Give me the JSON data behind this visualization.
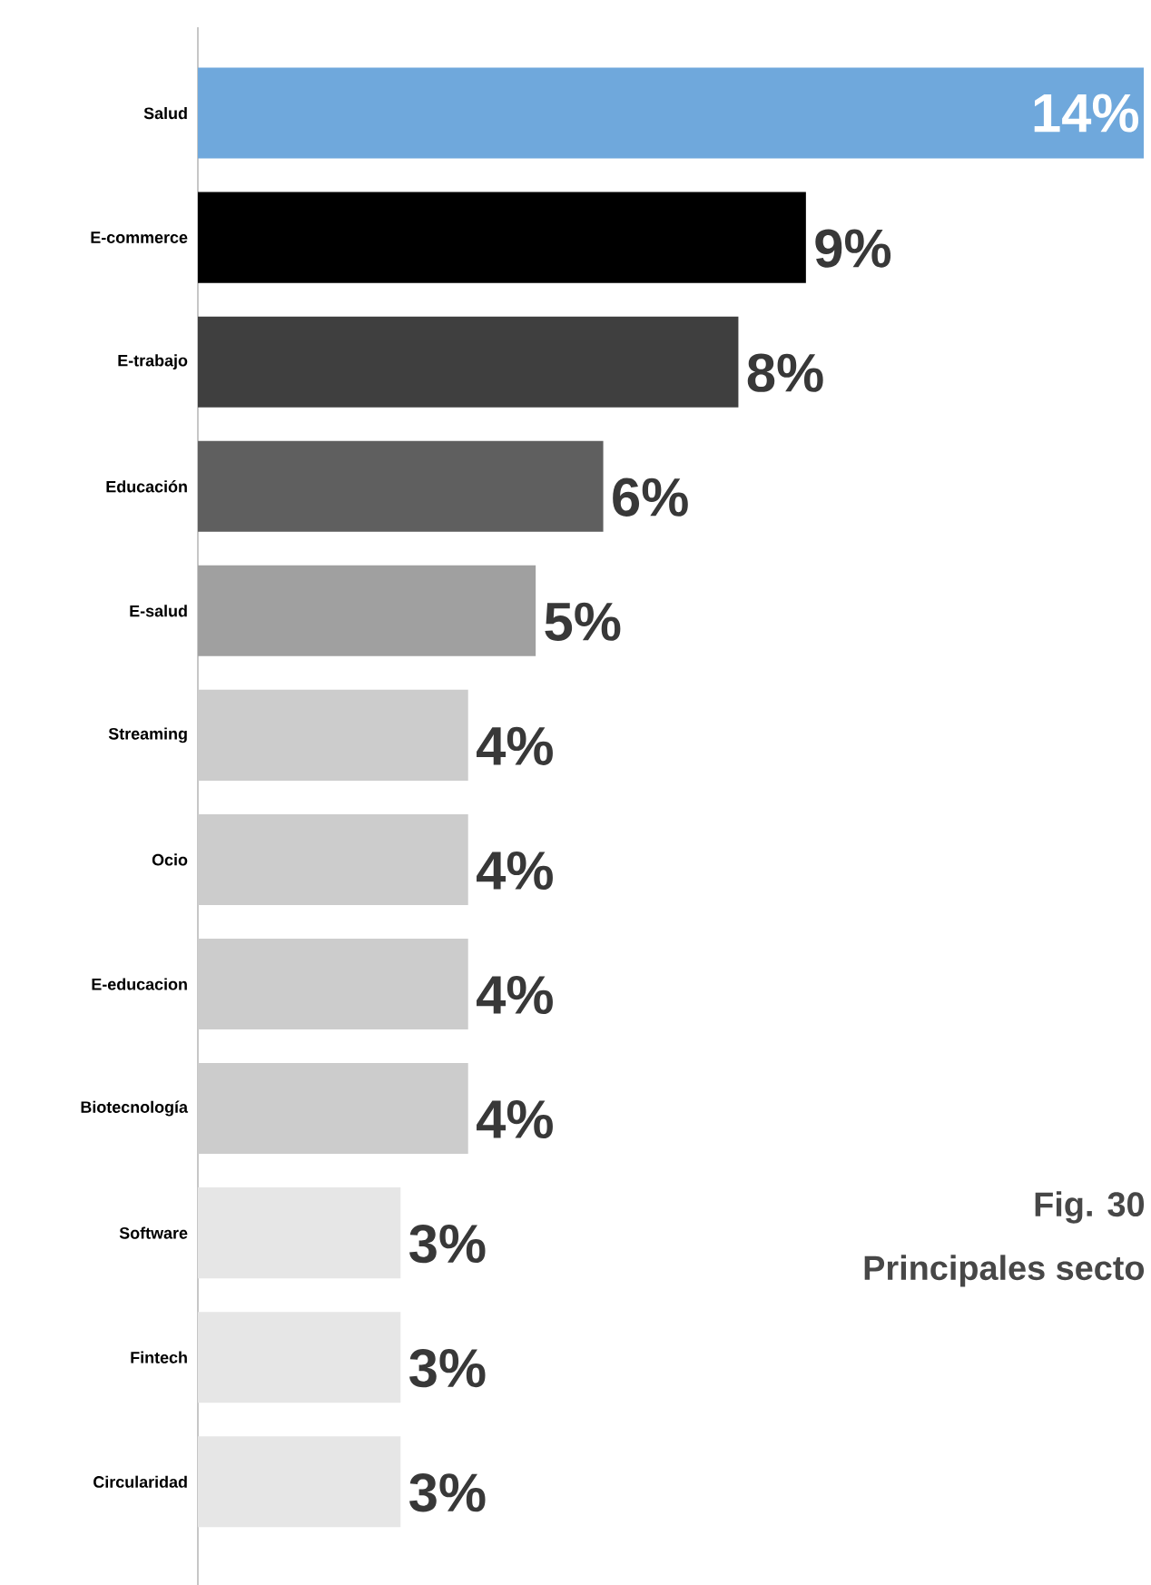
{
  "chart_data": {
    "type": "bar",
    "orientation": "horizontal",
    "categories": [
      "Salud",
      "E-commerce",
      "E-trabajo",
      "Educación",
      "E-salud",
      "Streaming",
      "Ocio",
      "E-educacion",
      "Biotecnología",
      "Software",
      "Fintech",
      "Circularidad"
    ],
    "values": [
      14,
      9,
      8,
      6,
      5,
      4,
      4,
      4,
      4,
      3,
      3,
      3
    ],
    "colors": [
      "#6fa8dc",
      "#000000",
      "#3f3f3f",
      "#5f5f5f",
      "#a0a0a0",
      "#cccccc",
      "#cccccc",
      "#cccccc",
      "#cccccc",
      "#e6e6e6",
      "#e6e6e6",
      "#e6e6e6"
    ],
    "value_labels": [
      "14%",
      "9%",
      "8%",
      "6%",
      "5%",
      "4%",
      "4%",
      "4%",
      "4%",
      "3%",
      "3%",
      "3%"
    ],
    "annotations": [
      "Fig. 30",
      "Principales secto"
    ]
  }
}
